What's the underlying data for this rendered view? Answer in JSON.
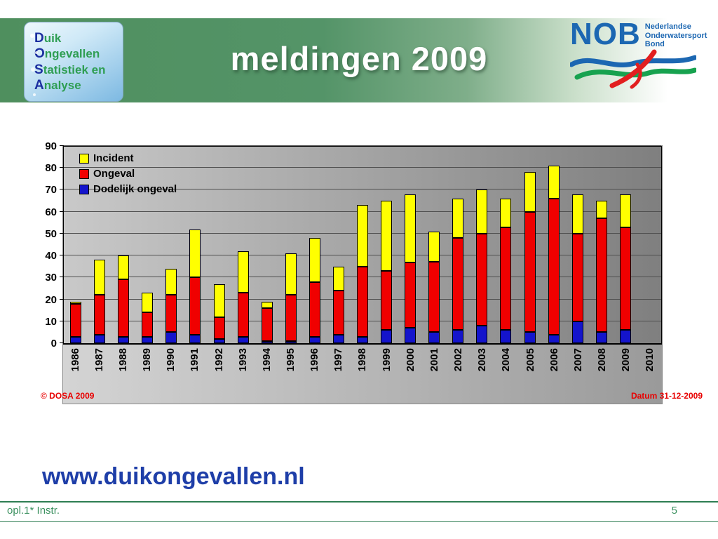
{
  "slide": {
    "title": "meldingen 2009",
    "url_text": "www.duikongevallen.nl",
    "footer_left": "opl.1* Instr.",
    "footer_page": "5"
  },
  "dosa_logo": {
    "lines": [
      {
        "initial": "D",
        "rest": "uik"
      },
      {
        "initial": "O",
        "rest": "ngevallen"
      },
      {
        "initial": "S",
        "rest": "tatistiek en"
      },
      {
        "initial": "A",
        "rest": "nalyse"
      }
    ]
  },
  "nob_logo": {
    "acronym": "NOB",
    "lines": [
      "Nederlandse",
      "Onderwatersport",
      "Bond"
    ]
  },
  "chart_data": {
    "type": "bar",
    "stacked": true,
    "title": "",
    "xlabel": "",
    "ylabel": "",
    "ylim": [
      0,
      90
    ],
    "ytick_step": 10,
    "legend_position": "top-left-inside",
    "background": "gray-gradient",
    "copyright": "© DOSA 2009",
    "date_label": "Datum 31-12-2009",
    "categories": [
      "1986",
      "1987",
      "1988",
      "1989",
      "1990",
      "1991",
      "1992",
      "1993",
      "1994",
      "1995",
      "1996",
      "1997",
      "1998",
      "1999",
      "2000",
      "2001",
      "2002",
      "2003",
      "2004",
      "2005",
      "2006",
      "2007",
      "2008",
      "2009",
      "2010"
    ],
    "series": [
      {
        "name": "Incident",
        "color": "#ffff00",
        "values": [
          1,
          16,
          11,
          9,
          12,
          22,
          15,
          19,
          3,
          19,
          20,
          11,
          28,
          32,
          31,
          14,
          18,
          20,
          13,
          18,
          15,
          18,
          8,
          15,
          0
        ]
      },
      {
        "name": "Ongeval",
        "color": "#f00000",
        "values": [
          15,
          18,
          26,
          11,
          17,
          26,
          10,
          20,
          15,
          21,
          25,
          20,
          32,
          27,
          30,
          32,
          42,
          42,
          47,
          55,
          62,
          40,
          52,
          47,
          0
        ]
      },
      {
        "name": "Dodelijk ongeval",
        "color": "#1414cc",
        "values": [
          3,
          4,
          3,
          3,
          5,
          4,
          2,
          3,
          1,
          1,
          3,
          4,
          3,
          6,
          7,
          5,
          6,
          8,
          6,
          5,
          4,
          10,
          5,
          6,
          0
        ]
      }
    ]
  }
}
